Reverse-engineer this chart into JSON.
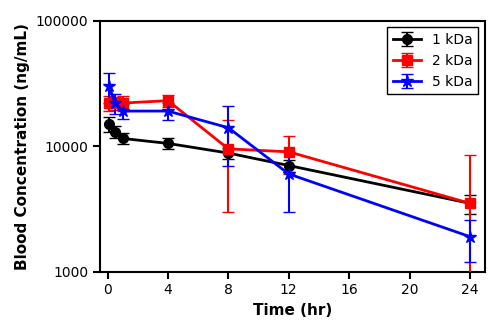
{
  "series": [
    {
      "label": "1 kDa",
      "color": "#000000",
      "marker": "o",
      "markersize": 7,
      "time": [
        0.1,
        0.5,
        1,
        4,
        8,
        12,
        24
      ],
      "mean": [
        15000,
        13000,
        11500,
        10500,
        8800,
        7000,
        3500
      ],
      "sd": [
        2000,
        1500,
        1200,
        1000,
        900,
        800,
        600
      ]
    },
    {
      "label": "2 kDa",
      "color": "#ff0000",
      "marker": "s",
      "markersize": 7,
      "time": [
        0.1,
        0.5,
        1,
        4,
        8,
        12,
        24
      ],
      "mean": [
        22000,
        22000,
        22000,
        23000,
        9500,
        9000,
        3500
      ],
      "sd": [
        3000,
        2500,
        3000,
        2500,
        6500,
        3000,
        5000
      ]
    },
    {
      "label": "5 kDa",
      "color": "#0000ff",
      "marker": "*",
      "markersize": 9,
      "time": [
        0.1,
        0.5,
        1,
        4,
        8,
        12,
        24
      ],
      "mean": [
        30000,
        22000,
        19000,
        19000,
        14000,
        6000,
        1900
      ],
      "sd": [
        8000,
        4000,
        2500,
        3000,
        7000,
        3000,
        700
      ]
    }
  ],
  "xlabel": "Time (hr)",
  "ylabel": "Blood Concentration (ng/mL)",
  "xlim": [
    -0.5,
    25
  ],
  "ylim": [
    1000,
    100000
  ],
  "xticks": [
    0,
    4,
    8,
    12,
    16,
    20,
    24
  ],
  "yticks": [
    1000,
    10000,
    100000
  ],
  "ytick_labels": [
    "1000",
    "10000",
    "100000"
  ],
  "legend_loc": "upper right",
  "background_color": "#ffffff",
  "linewidth": 2.0,
  "capsize": 4,
  "elinewidth": 1.5
}
